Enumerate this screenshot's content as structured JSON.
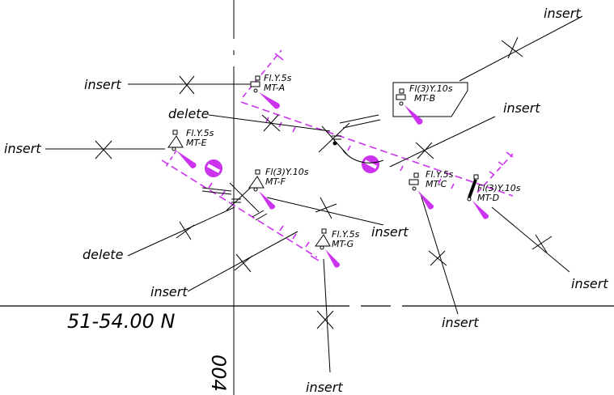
{
  "chart_labels": {
    "latitude": "51-54.00 N",
    "longitude": "004"
  },
  "annotations": [
    {
      "id": "ann-insert-top-right",
      "text": "insert"
    },
    {
      "id": "ann-insert-mt-a",
      "text": "insert"
    },
    {
      "id": "ann-delete-upper",
      "text": "delete"
    },
    {
      "id": "ann-insert-mt-b",
      "text": "insert"
    },
    {
      "id": "ann-insert-mt-e",
      "text": "insert"
    },
    {
      "id": "ann-insert-mt-f",
      "text": "insert"
    },
    {
      "id": "ann-delete-lower",
      "text": "delete"
    },
    {
      "id": "ann-insert-mt-g",
      "text": "insert"
    },
    {
      "id": "ann-insert-mt-d",
      "text": "insert"
    },
    {
      "id": "ann-insert-mt-c",
      "text": "insert"
    },
    {
      "id": "ann-insert-bottom",
      "text": "insert"
    }
  ],
  "buoys": [
    {
      "id": "mt-a",
      "name": "MT-A",
      "light": "Fl.Y.5s"
    },
    {
      "id": "mt-b",
      "name": "MT-B",
      "light": "Fl(3)Y.10s"
    },
    {
      "id": "mt-c",
      "name": "MT-C",
      "light": "Fl.Y.5s"
    },
    {
      "id": "mt-d",
      "name": "MT-D",
      "light": "Fl(3)Y.10s"
    },
    {
      "id": "mt-e",
      "name": "MT-E",
      "light": "Fl.Y.5s"
    },
    {
      "id": "mt-f",
      "name": "MT-F",
      "light": "Fl(3)Y.10s"
    },
    {
      "id": "mt-g",
      "name": "MT-G",
      "light": "Fl.Y.5s"
    }
  ],
  "colors": {
    "light_flare": "#cc33ee",
    "ink": "#000000"
  }
}
